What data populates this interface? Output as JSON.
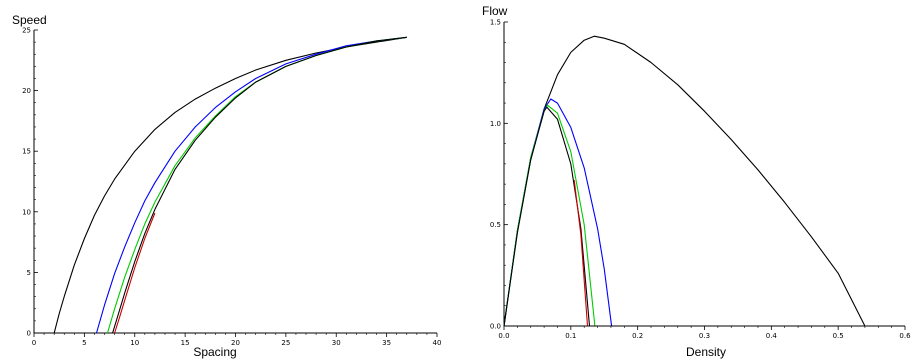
{
  "chart_data": [
    {
      "type": "line",
      "xlabel": "Spacing",
      "ylabel": "Speed",
      "xlim": [
        0,
        40
      ],
      "ylim": [
        0,
        25
      ],
      "xticks": [
        0,
        5,
        10,
        15,
        20,
        25,
        30,
        35,
        40
      ],
      "yticks": [
        0,
        5,
        10,
        15,
        20,
        25
      ],
      "grid": false,
      "series": [
        {
          "color": "#000000",
          "x": [
            2.0,
            2.5,
            3,
            4,
            5,
            6,
            7,
            8,
            10,
            12,
            14,
            16,
            18,
            20,
            22,
            25,
            28,
            31,
            34,
            37
          ],
          "y": [
            0,
            1.6,
            3.0,
            5.6,
            7.8,
            9.7,
            11.3,
            12.7,
            15.0,
            16.8,
            18.2,
            19.3,
            20.2,
            21.0,
            21.7,
            22.5,
            23.1,
            23.6,
            24.0,
            24.4
          ]
        },
        {
          "color": "#0000ff",
          "x": [
            6.2,
            7,
            8,
            9,
            10,
            11,
            12,
            14,
            16,
            18,
            20,
            22,
            25,
            28,
            31,
            34,
            37
          ],
          "y": [
            0,
            2.3,
            4.9,
            7.1,
            9.1,
            10.9,
            12.4,
            15.0,
            17.0,
            18.6,
            19.9,
            21.0,
            22.2,
            23.0,
            23.7,
            24.1,
            24.4
          ]
        },
        {
          "color": "#00cc00",
          "x": [
            7.3,
            8,
            9,
            10,
            11,
            12,
            14,
            16,
            18,
            20,
            22,
            25,
            28,
            31,
            34,
            37
          ],
          "y": [
            0,
            2.0,
            4.6,
            6.9,
            9.0,
            10.8,
            13.8,
            16.1,
            17.9,
            19.5,
            20.7,
            22.0,
            22.9,
            23.6,
            24.1,
            24.4
          ]
        },
        {
          "color": "#000000",
          "x": [
            7.8,
            8.5,
            9,
            10,
            11,
            12,
            14,
            16,
            18,
            20,
            22,
            25,
            28,
            31,
            34,
            37
          ],
          "y": [
            0,
            1.9,
            3.3,
            5.9,
            8.2,
            10.2,
            13.5,
            15.9,
            17.8,
            19.4,
            20.7,
            22.0,
            22.9,
            23.6,
            24.1,
            24.4
          ]
        },
        {
          "color": "#cc0000",
          "x": [
            8.0,
            8.5,
            9,
            10,
            11,
            12
          ],
          "y": [
            0,
            1.3,
            2.7,
            5.4,
            7.8,
            9.9
          ]
        }
      ]
    },
    {
      "type": "line",
      "xlabel": "Density",
      "ylabel": "Flow",
      "xlim": [
        0,
        0.6
      ],
      "ylim": [
        0,
        1.5
      ],
      "xticks": [
        "0.0",
        "0.1",
        "0.2",
        "0.3",
        "0.4",
        "0.5",
        "0.6"
      ],
      "yticks": [
        "0.0",
        "0.5",
        "1.0",
        "1.5"
      ],
      "grid": false,
      "series": [
        {
          "color": "#000000",
          "x": [
            0,
            0.02,
            0.04,
            0.06,
            0.08,
            0.1,
            0.12,
            0.135,
            0.15,
            0.18,
            0.22,
            0.26,
            0.3,
            0.34,
            0.38,
            0.42,
            0.46,
            0.5,
            0.54
          ],
          "y": [
            0,
            0.47,
            0.82,
            1.07,
            1.24,
            1.35,
            1.41,
            1.43,
            1.42,
            1.39,
            1.3,
            1.19,
            1.06,
            0.92,
            0.77,
            0.61,
            0.44,
            0.26,
            0.0
          ]
        },
        {
          "color": "#0000ff",
          "x": [
            0,
            0.02,
            0.04,
            0.06,
            0.07,
            0.08,
            0.1,
            0.12,
            0.14,
            0.15,
            0.161,
            0.6
          ],
          "y": [
            0,
            0.47,
            0.83,
            1.07,
            1.12,
            1.1,
            0.98,
            0.78,
            0.48,
            0.28,
            0.0,
            0.0
          ]
        },
        {
          "color": "#00cc00",
          "x": [
            0,
            0.02,
            0.04,
            0.06,
            0.065,
            0.08,
            0.1,
            0.12,
            0.136,
            0.6
          ],
          "y": [
            0,
            0.47,
            0.83,
            1.06,
            1.09,
            1.05,
            0.86,
            0.5,
            0.0,
            0.0
          ]
        },
        {
          "color": "#000000",
          "x": [
            0,
            0.02,
            0.04,
            0.06,
            0.064,
            0.08,
            0.1,
            0.115,
            0.128,
            0.6
          ],
          "y": [
            0,
            0.46,
            0.82,
            1.06,
            1.08,
            1.02,
            0.8,
            0.48,
            0.0,
            0.0
          ]
        },
        {
          "color": "#cc0000",
          "x": [
            0.105,
            0.115,
            0.125
          ],
          "y": [
            0.72,
            0.45,
            0.0
          ]
        }
      ]
    }
  ]
}
